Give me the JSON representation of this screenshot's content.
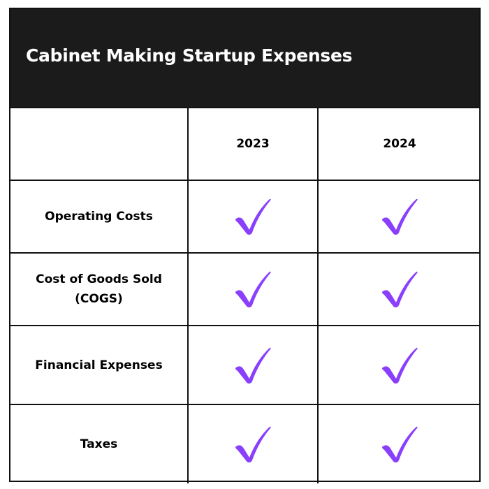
{
  "title": "Cabinet Making Startup Expenses",
  "columns": [
    "",
    "2023",
    "2024"
  ],
  "rows": [
    {
      "label": "Operating Costs",
      "checks": [
        true,
        true
      ]
    },
    {
      "label": "Cost of Goods Sold (COGS)",
      "checks": [
        true,
        true
      ]
    },
    {
      "label": "Financial Expenses",
      "checks": [
        true,
        true
      ]
    },
    {
      "label": "Taxes",
      "checks": [
        true,
        true
      ]
    }
  ],
  "colors": {
    "header_bg": "#1b1b1b",
    "check": "#8a3ffc"
  },
  "icons": {
    "check": "checkmark-icon"
  }
}
